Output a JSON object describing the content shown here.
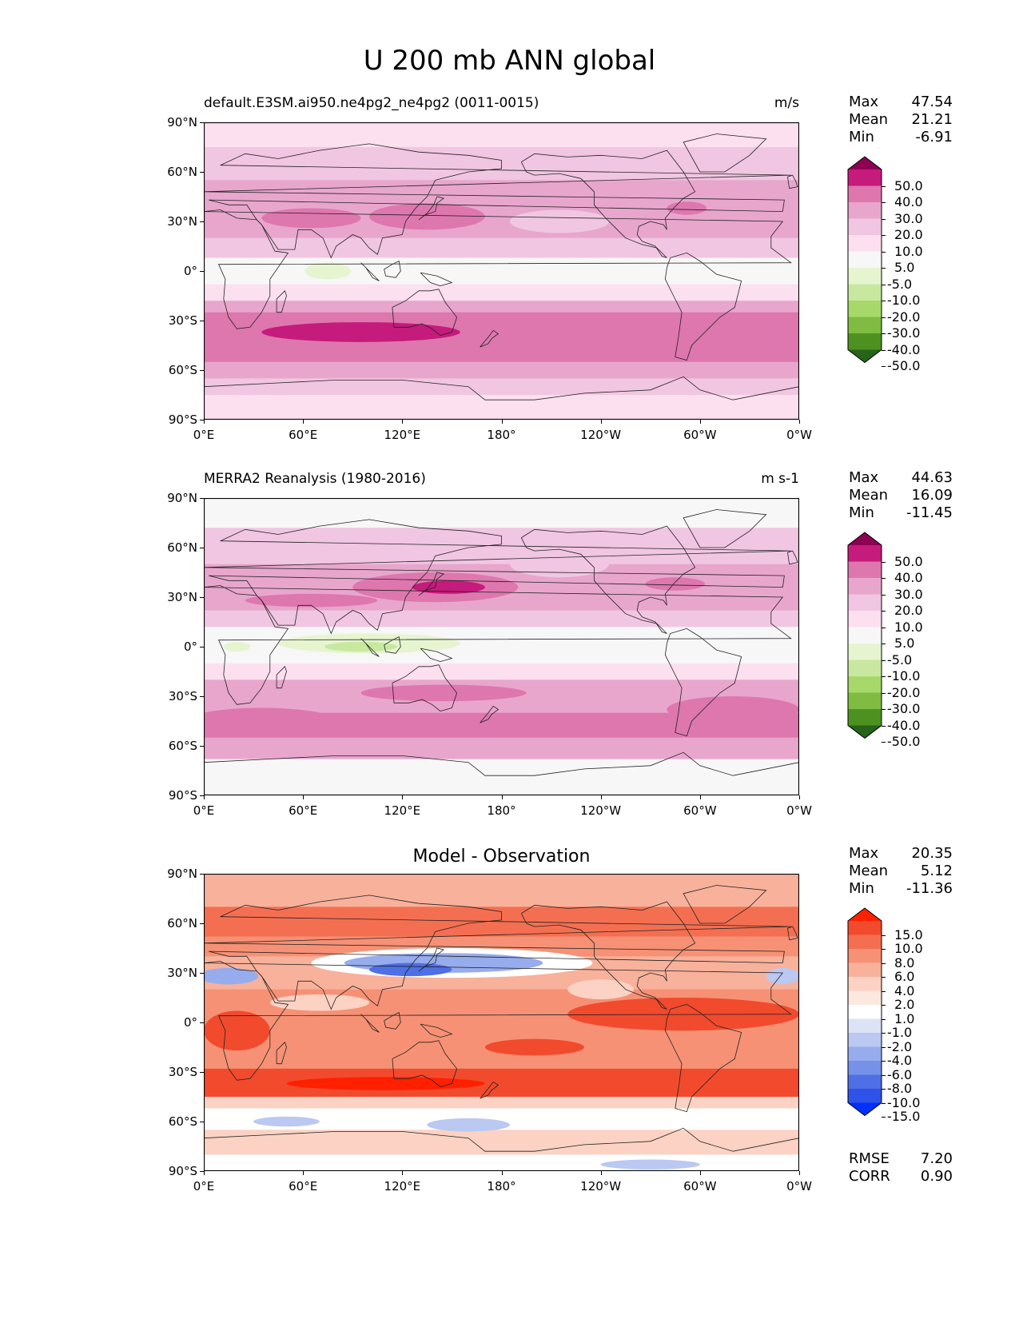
{
  "suptitle": "U 200 mb ANN global",
  "chart_data": [
    {
      "type": "heatmap",
      "title_left": "default.E3SM.ai950.ne4pg2_ne4pg2 (0011-0015)",
      "title_right": "m/s",
      "stats": {
        "max_label": "Max",
        "max": "47.54",
        "mean_label": "Mean",
        "mean": "21.21",
        "min_label": "Min",
        "min": "-6.91"
      },
      "colorbar": {
        "levels": [
          "50.0",
          "40.0",
          "30.0",
          "20.0",
          "10.0",
          "5.0",
          "-5.0",
          "-10.0",
          "-20.0",
          "-30.0",
          "-40.0",
          "-50.0"
        ],
        "colors": [
          "#8e0152",
          "#c51b7d",
          "#de77ae",
          "#e8a6cd",
          "#f1c6e2",
          "#fde0ef",
          "#f7f7f7",
          "#e6f5d0",
          "#c8e8a0",
          "#a6d96a",
          "#7fbc41",
          "#4d9221",
          "#276419"
        ]
      },
      "xticks": [
        "0°E",
        "60°E",
        "120°E",
        "180°",
        "120°W",
        "60°W",
        "0°W"
      ],
      "yticks": [
        "90°N",
        "60°N",
        "30°N",
        "0°",
        "30°S",
        "60°S",
        "90°S"
      ],
      "bands": [
        {
          "lat": [
            90,
            75
          ],
          "color": "#fde0ef"
        },
        {
          "lat": [
            75,
            55
          ],
          "color": "#f1c6e2"
        },
        {
          "lat": [
            55,
            20
          ],
          "color": "#e8a6cd"
        },
        {
          "lat": [
            20,
            8
          ],
          "color": "#f1c6e2"
        },
        {
          "lat": [
            8,
            -8
          ],
          "color": "#f7f7f7"
        },
        {
          "lat": [
            -8,
            -18
          ],
          "color": "#fde0ef"
        },
        {
          "lat": [
            -18,
            -25
          ],
          "color": "#e8a6cd"
        },
        {
          "lat": [
            -25,
            -55
          ],
          "color": "#de77ae"
        },
        {
          "lat": [
            -55,
            -65
          ],
          "color": "#e8a6cd"
        },
        {
          "lat": [
            -65,
            -75
          ],
          "color": "#f1c6e2"
        },
        {
          "lat": [
            -75,
            -90
          ],
          "color": "#fde0ef"
        }
      ],
      "blobs": [
        {
          "lon": 135,
          "lat": 33,
          "rlon": 35,
          "rlat": 8,
          "color": "#de77ae"
        },
        {
          "lon": 65,
          "lat": 32,
          "rlon": 30,
          "rlat": 6,
          "color": "#de77ae"
        },
        {
          "lon": 292,
          "lat": 38,
          "rlon": 12,
          "rlat": 4,
          "color": "#de77ae"
        },
        {
          "lon": 95,
          "lat": -37,
          "rlon": 60,
          "rlat": 6,
          "color": "#c51b7d"
        },
        {
          "lon": 75,
          "lat": 0,
          "rlon": 14,
          "rlat": 5,
          "color": "#e6f5d0"
        },
        {
          "lon": 215,
          "lat": 30,
          "rlon": 30,
          "rlat": 7,
          "color": "#f1c6e2"
        }
      ]
    },
    {
      "type": "heatmap",
      "title_left": "MERRA2 Reanalysis (1980-2016)",
      "title_right": "m s-1",
      "stats": {
        "max_label": "Max",
        "max": "44.63",
        "mean_label": "Mean",
        "mean": "16.09",
        "min_label": "Min",
        "min": "-11.45"
      },
      "colorbar": {
        "levels": [
          "50.0",
          "40.0",
          "30.0",
          "20.0",
          "10.0",
          "5.0",
          "-5.0",
          "-10.0",
          "-20.0",
          "-30.0",
          "-40.0",
          "-50.0"
        ],
        "colors": [
          "#8e0152",
          "#c51b7d",
          "#de77ae",
          "#e8a6cd",
          "#f1c6e2",
          "#fde0ef",
          "#f7f7f7",
          "#e6f5d0",
          "#c8e8a0",
          "#a6d96a",
          "#7fbc41",
          "#4d9221",
          "#276419"
        ]
      },
      "xticks": [
        "0°E",
        "60°E",
        "120°E",
        "180°",
        "120°W",
        "60°W",
        "0°W"
      ],
      "yticks": [
        "90°N",
        "60°N",
        "30°N",
        "0°",
        "30°S",
        "60°S",
        "90°S"
      ],
      "bands": [
        {
          "lat": [
            90,
            72
          ],
          "color": "#f7f7f7"
        },
        {
          "lat": [
            72,
            50
          ],
          "color": "#f1c6e2"
        },
        {
          "lat": [
            50,
            22
          ],
          "color": "#e8a6cd"
        },
        {
          "lat": [
            22,
            12
          ],
          "color": "#f1c6e2"
        },
        {
          "lat": [
            12,
            -10
          ],
          "color": "#f7f7f7"
        },
        {
          "lat": [
            -10,
            -20
          ],
          "color": "#fde0ef"
        },
        {
          "lat": [
            -20,
            -40
          ],
          "color": "#e8a6cd"
        },
        {
          "lat": [
            -40,
            -55
          ],
          "color": "#de77ae"
        },
        {
          "lat": [
            -55,
            -68
          ],
          "color": "#e8a6cd"
        },
        {
          "lat": [
            -68,
            -90
          ],
          "color": "#f7f7f7"
        }
      ],
      "blobs": [
        {
          "lon": 140,
          "lat": 36,
          "rlon": 50,
          "rlat": 9,
          "color": "#de77ae"
        },
        {
          "lon": 148,
          "lat": 36,
          "rlon": 22,
          "rlat": 4,
          "color": "#c51b7d"
        },
        {
          "lon": 65,
          "lat": 28,
          "rlon": 40,
          "rlat": 4,
          "color": "#de77ae"
        },
        {
          "lon": 285,
          "lat": 38,
          "rlon": 18,
          "rlat": 4,
          "color": "#de77ae"
        },
        {
          "lon": 100,
          "lat": 2,
          "rlon": 55,
          "rlat": 6,
          "color": "#e6f5d0"
        },
        {
          "lon": 95,
          "lat": 0,
          "rlon": 22,
          "rlat": 3,
          "color": "#c8e8a0"
        },
        {
          "lon": 20,
          "lat": 0,
          "rlon": 8,
          "rlat": 3,
          "color": "#e6f5d0"
        },
        {
          "lon": 145,
          "lat": -28,
          "rlon": 50,
          "rlat": 5,
          "color": "#de77ae"
        },
        {
          "lon": 35,
          "lat": -45,
          "rlon": 45,
          "rlat": 8,
          "color": "#de77ae"
        },
        {
          "lon": 320,
          "lat": -38,
          "rlon": 40,
          "rlat": 8,
          "color": "#de77ae"
        },
        {
          "lon": 215,
          "lat": 50,
          "rlon": 30,
          "rlat": 8,
          "color": "#f1c6e2"
        }
      ]
    },
    {
      "type": "heatmap",
      "title_center": "Model - Observation",
      "stats": {
        "max_label": "Max",
        "max": "20.35",
        "mean_label": "Mean",
        "mean": "5.12",
        "min_label": "Min",
        "min": "-11.36"
      },
      "extra_stats": {
        "rmse_label": "RMSE",
        "rmse": "7.20",
        "corr_label": "CORR",
        "corr": "0.90"
      },
      "colorbar": {
        "levels": [
          "15.0",
          "10.0",
          "8.0",
          "6.0",
          "4.0",
          "2.0",
          "1.0",
          "-1.0",
          "-2.0",
          "-4.0",
          "-6.0",
          "-8.0",
          "-10.0",
          "-15.0"
        ],
        "colors": [
          "#ff2000",
          "#f24a2d",
          "#f46f51",
          "#f69175",
          "#f8b19b",
          "#fbd2c3",
          "#fde8e0",
          "#ffffff",
          "#dde3f7",
          "#bac8f2",
          "#97aced",
          "#7591e8",
          "#4e6fe5",
          "#2f52e8",
          "#0030ff"
        ]
      },
      "xticks": [
        "0°E",
        "60°E",
        "120°E",
        "180°",
        "120°W",
        "60°W",
        "0°W"
      ],
      "yticks": [
        "90°N",
        "60°N",
        "30°N",
        "0°",
        "30°S",
        "60°S",
        "90°S"
      ],
      "bands": [
        {
          "lat": [
            90,
            70
          ],
          "color": "#f8b19b"
        },
        {
          "lat": [
            70,
            52
          ],
          "color": "#f46f51"
        },
        {
          "lat": [
            52,
            40
          ],
          "color": "#f69175"
        },
        {
          "lat": [
            40,
            20
          ],
          "color": "#f8b19b"
        },
        {
          "lat": [
            20,
            -15
          ],
          "color": "#f69175"
        },
        {
          "lat": [
            -15,
            -28
          ],
          "color": "#f69175"
        },
        {
          "lat": [
            -28,
            -45
          ],
          "color": "#f24a2d"
        },
        {
          "lat": [
            -45,
            -52
          ],
          "color": "#fbd2c3"
        },
        {
          "lat": [
            -52,
            -65
          ],
          "color": "#ffffff"
        },
        {
          "lat": [
            -65,
            -80
          ],
          "color": "#fbd2c3"
        },
        {
          "lat": [
            -80,
            -90
          ],
          "color": "#ffffff"
        }
      ],
      "blobs": [
        {
          "lon": 150,
          "lat": 36,
          "rlon": 85,
          "rlat": 9,
          "color": "#ffffff"
        },
        {
          "lon": 145,
          "lat": 36,
          "rlon": 60,
          "rlat": 6,
          "color": "#97aced"
        },
        {
          "lon": 125,
          "lat": 32,
          "rlon": 25,
          "rlat": 4,
          "color": "#4e6fe5"
        },
        {
          "lon": 15,
          "lat": 28,
          "rlon": 18,
          "rlat": 5,
          "color": "#97aced"
        },
        {
          "lon": 350,
          "lat": 28,
          "rlon": 10,
          "rlat": 5,
          "color": "#bac8f2"
        },
        {
          "lon": 290,
          "lat": 5,
          "rlon": 70,
          "rlat": 10,
          "color": "#f24a2d"
        },
        {
          "lon": 20,
          "lat": -5,
          "rlon": 20,
          "rlat": 12,
          "color": "#f24a2d"
        },
        {
          "lon": 200,
          "lat": -15,
          "rlon": 30,
          "rlat": 5,
          "color": "#f24a2d"
        },
        {
          "lon": 110,
          "lat": -37,
          "rlon": 60,
          "rlat": 4,
          "color": "#ff2000"
        },
        {
          "lon": 160,
          "lat": -62,
          "rlon": 25,
          "rlat": 4,
          "color": "#bac8f2"
        },
        {
          "lon": 50,
          "lat": -60,
          "rlon": 20,
          "rlat": 3,
          "color": "#bac8f2"
        },
        {
          "lon": 270,
          "lat": -86,
          "rlon": 30,
          "rlat": 3,
          "color": "#bac8f2"
        },
        {
          "lon": 70,
          "lat": 12,
          "rlon": 30,
          "rlat": 5,
          "color": "#fbd2c3"
        },
        {
          "lon": 240,
          "lat": 20,
          "rlon": 20,
          "rlat": 6,
          "color": "#fbd2c3"
        }
      ]
    }
  ]
}
